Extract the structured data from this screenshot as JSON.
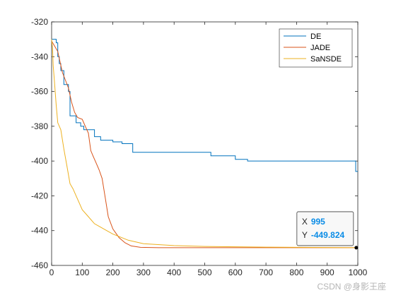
{
  "chart_data": {
    "type": "line",
    "title": "",
    "xlabel": "",
    "ylabel": "",
    "xlim": [
      0,
      1000
    ],
    "ylim": [
      -460,
      -320
    ],
    "xticks": [
      "0",
      "100",
      "200",
      "300",
      "400",
      "500",
      "600",
      "700",
      "800",
      "900",
      "1000"
    ],
    "yticks": [
      "-320",
      "-340",
      "-360",
      "-380",
      "-400",
      "-420",
      "-440",
      "-460"
    ],
    "grid": false,
    "legend_position": "top-right",
    "series": [
      {
        "name": "DE",
        "color": "#0072BD",
        "step": true,
        "x": [
          0,
          15,
          20,
          25,
          30,
          40,
          55,
          60,
          80,
          95,
          105,
          140,
          160,
          200,
          230,
          265,
          520,
          600,
          640,
          990,
          993,
          1000
        ],
        "y": [
          -330,
          -332,
          -340,
          -344,
          -348,
          -356,
          -360,
          -374,
          -378,
          -380,
          -382,
          -386,
          -388,
          -389,
          -390,
          -395,
          -397,
          -399,
          -400,
          -400,
          -406,
          -406
        ]
      },
      {
        "name": "JADE",
        "color": "#D95319",
        "step": false,
        "x": [
          0,
          20,
          35,
          55,
          65,
          75,
          85,
          100,
          110,
          120,
          128,
          135,
          145,
          155,
          165,
          175,
          185,
          200,
          220,
          240,
          260,
          290,
          350,
          500,
          1000
        ],
        "y": [
          -331,
          -337,
          -349,
          -358,
          -366,
          -372,
          -375,
          -376,
          -380,
          -384,
          -394,
          -397,
          -401,
          -405,
          -410,
          -421,
          -432,
          -439,
          -444,
          -447,
          -448.8,
          -449.6,
          -449.8,
          -449.8,
          -449.8
        ]
      },
      {
        "name": "SaNSDE",
        "color": "#EDB120",
        "step": false,
        "x": [
          0,
          3,
          5,
          10,
          15,
          20,
          30,
          40,
          50,
          60,
          70,
          80,
          90,
          100,
          120,
          140,
          160,
          180,
          200,
          250,
          300,
          400,
          500,
          700,
          1000
        ],
        "y": [
          -330,
          -335,
          -345,
          -356,
          -368,
          -378,
          -382,
          -393,
          -403,
          -413,
          -416,
          -420,
          -424,
          -428,
          -432,
          -436,
          -438,
          -440,
          -442,
          -445.5,
          -447.5,
          -448.6,
          -449.1,
          -449.5,
          -449.8
        ]
      }
    ],
    "datatip": {
      "x_label": "X",
      "x_value": "995",
      "y_label": "Y",
      "y_value": "-449.824",
      "x": 995,
      "y": -449.824
    }
  },
  "watermark": "CSDN @身影王座",
  "colors": {
    "axis": "#262626",
    "datatip_value": "#0A8CE6",
    "datatip_border": "#3C3C3C"
  }
}
